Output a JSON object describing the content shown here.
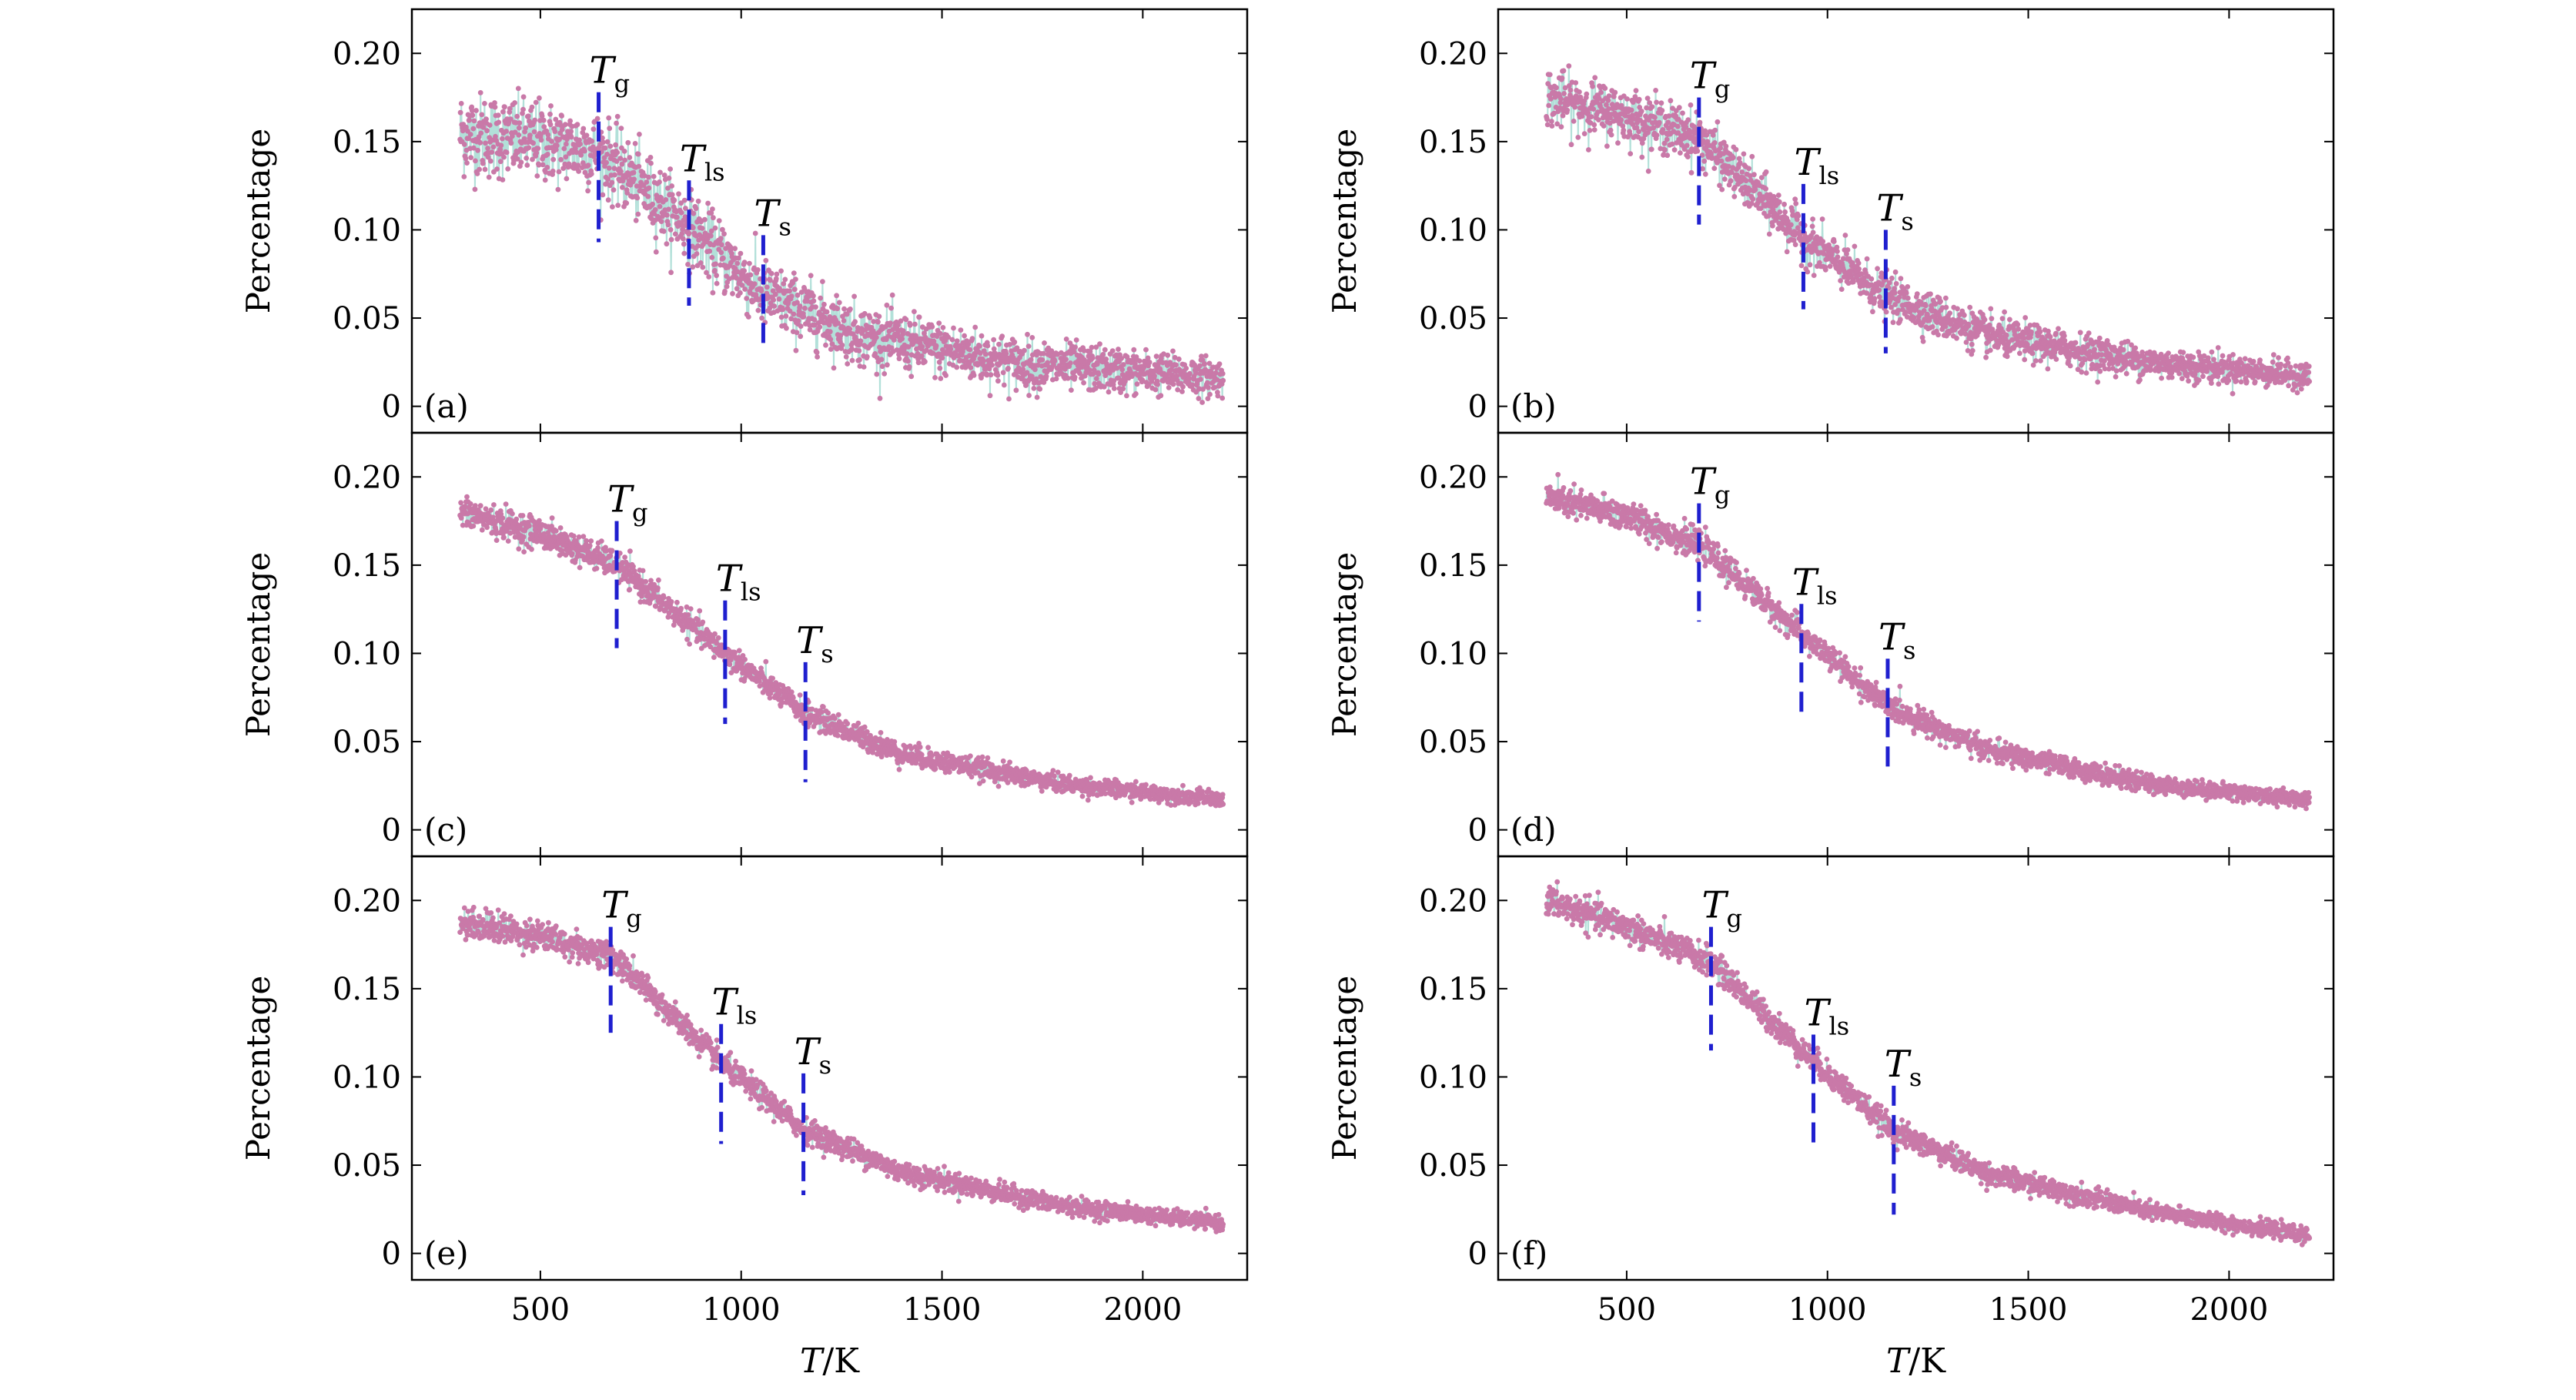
{
  "colors": {
    "points": "#c979a8",
    "line_light": "#9fd8cf",
    "marker_line": "#1f1fcf",
    "axis": "#000000"
  },
  "common": {
    "ylabel": "Percentage",
    "xlabel": "T/K",
    "xlabel_italic": "T",
    "xlabel_unit": "/K",
    "xlim": [
      180,
      2260
    ],
    "ylim": [
      -0.015,
      0.225
    ],
    "xticks": [
      500,
      1000,
      1500,
      2000
    ],
    "yticks": [
      0,
      0.05,
      0.1,
      0.15,
      0.2
    ],
    "ytick_labels": [
      "0",
      "0.05",
      "0.10",
      "0.15",
      "0.20"
    ]
  },
  "chart_data": [
    {
      "type": "scatter",
      "panel_label": "(a)",
      "x_range": [
        300,
        2200
      ],
      "trend": [
        [
          300,
          0.155
        ],
        [
          500,
          0.15
        ],
        [
          640,
          0.145
        ],
        [
          870,
          0.102
        ],
        [
          1050,
          0.064
        ],
        [
          1300,
          0.04
        ],
        [
          1700,
          0.024
        ],
        [
          2200,
          0.016
        ]
      ],
      "noise": "high",
      "markers": [
        {
          "name": "T",
          "sub": "g",
          "x": 645,
          "y_top": 0.178,
          "y_bottom": 0.093
        },
        {
          "name": "T",
          "sub": "ls",
          "x": 870,
          "y_top": 0.128,
          "y_bottom": 0.057
        },
        {
          "name": "T",
          "sub": "s",
          "x": 1055,
          "y_top": 0.097,
          "y_bottom": 0.031
        }
      ]
    },
    {
      "type": "scatter",
      "panel_label": "(b)",
      "x_range": [
        300,
        2200
      ],
      "trend": [
        [
          300,
          0.175
        ],
        [
          500,
          0.165
        ],
        [
          680,
          0.152
        ],
        [
          940,
          0.095
        ],
        [
          1140,
          0.063
        ],
        [
          1400,
          0.04
        ],
        [
          1800,
          0.025
        ],
        [
          2200,
          0.017
        ]
      ],
      "noise": "medium",
      "markers": [
        {
          "name": "T",
          "sub": "g",
          "x": 680,
          "y_top": 0.175,
          "y_bottom": 0.103
        },
        {
          "name": "T",
          "sub": "ls",
          "x": 940,
          "y_top": 0.126,
          "y_bottom": 0.055
        },
        {
          "name": "T",
          "sub": "s",
          "x": 1145,
          "y_top": 0.1,
          "y_bottom": 0.03
        }
      ]
    },
    {
      "type": "scatter",
      "panel_label": "(c)",
      "x_range": [
        300,
        2200
      ],
      "trend": [
        [
          300,
          0.18
        ],
        [
          500,
          0.168
        ],
        [
          690,
          0.15
        ],
        [
          960,
          0.1
        ],
        [
          1160,
          0.066
        ],
        [
          1400,
          0.043
        ],
        [
          1800,
          0.026
        ],
        [
          2200,
          0.017
        ]
      ],
      "noise": "low",
      "markers": [
        {
          "name": "T",
          "sub": "g",
          "x": 690,
          "y_top": 0.175,
          "y_bottom": 0.103
        },
        {
          "name": "T",
          "sub": "ls",
          "x": 960,
          "y_top": 0.13,
          "y_bottom": 0.06
        },
        {
          "name": "T",
          "sub": "s",
          "x": 1160,
          "y_top": 0.095,
          "y_bottom": 0.027
        }
      ]
    },
    {
      "type": "scatter",
      "panel_label": "(d)",
      "x_range": [
        300,
        2200
      ],
      "trend": [
        [
          300,
          0.188
        ],
        [
          500,
          0.178
        ],
        [
          690,
          0.16
        ],
        [
          940,
          0.11
        ],
        [
          1150,
          0.07
        ],
        [
          1400,
          0.045
        ],
        [
          1800,
          0.026
        ],
        [
          2200,
          0.017
        ]
      ],
      "noise": "low",
      "markers": [
        {
          "name": "T",
          "sub": "g",
          "x": 680,
          "y_top": 0.185,
          "y_bottom": 0.118
        },
        {
          "name": "T",
          "sub": "ls",
          "x": 935,
          "y_top": 0.128,
          "y_bottom": 0.065
        },
        {
          "name": "T",
          "sub": "s",
          "x": 1150,
          "y_top": 0.097,
          "y_bottom": 0.032
        }
      ]
    },
    {
      "type": "scatter",
      "panel_label": "(e)",
      "x_range": [
        300,
        2200
      ],
      "trend": [
        [
          300,
          0.188
        ],
        [
          500,
          0.18
        ],
        [
          680,
          0.168
        ],
        [
          950,
          0.108
        ],
        [
          1150,
          0.071
        ],
        [
          1400,
          0.046
        ],
        [
          1800,
          0.027
        ],
        [
          2200,
          0.017
        ]
      ],
      "noise": "low",
      "markers": [
        {
          "name": "T",
          "sub": "g",
          "x": 675,
          "y_top": 0.185,
          "y_bottom": 0.125
        },
        {
          "name": "T",
          "sub": "ls",
          "x": 950,
          "y_top": 0.13,
          "y_bottom": 0.062
        },
        {
          "name": "T",
          "sub": "s",
          "x": 1155,
          "y_top": 0.102,
          "y_bottom": 0.033
        }
      ]
    },
    {
      "type": "scatter",
      "panel_label": "(f)",
      "x_range": [
        300,
        2200
      ],
      "trend": [
        [
          300,
          0.2
        ],
        [
          500,
          0.185
        ],
        [
          710,
          0.165
        ],
        [
          960,
          0.11
        ],
        [
          1160,
          0.07
        ],
        [
          1400,
          0.045
        ],
        [
          1800,
          0.024
        ],
        [
          2200,
          0.01
        ]
      ],
      "noise": "low",
      "markers": [
        {
          "name": "T",
          "sub": "g",
          "x": 710,
          "y_top": 0.185,
          "y_bottom": 0.115
        },
        {
          "name": "T",
          "sub": "ls",
          "x": 965,
          "y_top": 0.124,
          "y_bottom": 0.06
        },
        {
          "name": "T",
          "sub": "s",
          "x": 1165,
          "y_top": 0.095,
          "y_bottom": 0.022
        }
      ]
    }
  ]
}
